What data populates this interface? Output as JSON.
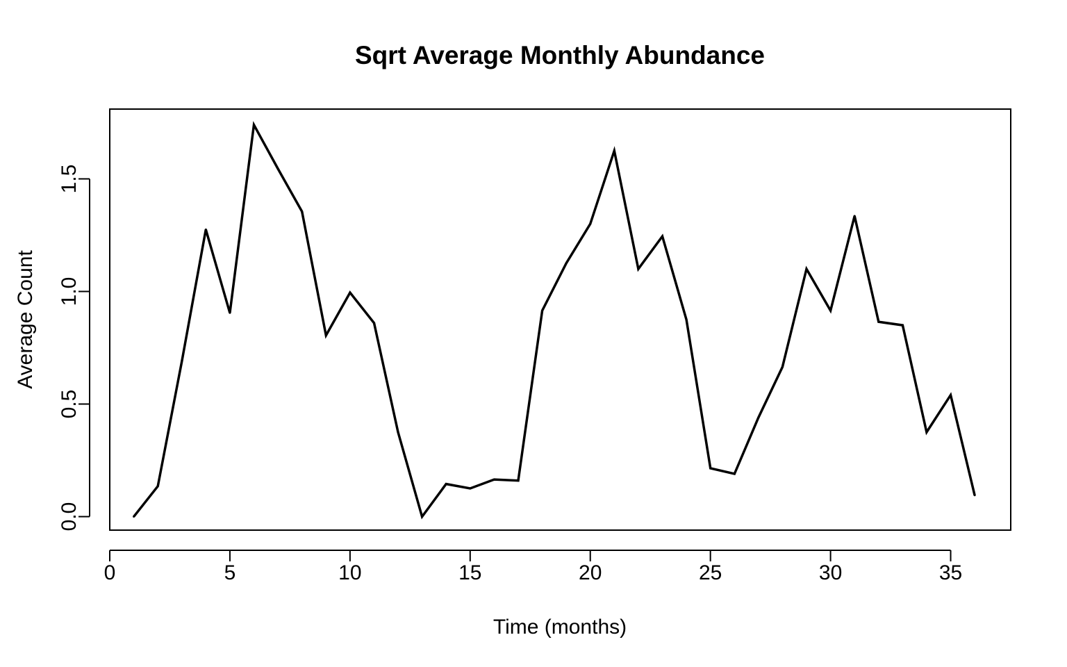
{
  "chart_data": {
    "type": "line",
    "title": "Sqrt Average Monthly Abundance",
    "xlabel": "Time (months)",
    "ylabel": "Average Count",
    "xlim": [
      0,
      37.5
    ],
    "ylim": [
      -0.06,
      1.81
    ],
    "x_ticks": [
      0,
      5,
      10,
      15,
      20,
      25,
      30,
      35
    ],
    "x_tick_labels": [
      "0",
      "5",
      "10",
      "15",
      "20",
      "25",
      "30",
      "35"
    ],
    "y_ticks": [
      0.0,
      0.5,
      1.0,
      1.5
    ],
    "y_tick_labels": [
      "0.0",
      "0.5",
      "1.0",
      "1.5"
    ],
    "grid": false,
    "line_color": "#000000",
    "series": [
      {
        "x": [
          1,
          2,
          3,
          4,
          5,
          6,
          7,
          8,
          9,
          10,
          11,
          12,
          13,
          14,
          15,
          16,
          17,
          18,
          19,
          20,
          21,
          22,
          23,
          24,
          25,
          26,
          27,
          28,
          29,
          30,
          31,
          32,
          33,
          34,
          35,
          36
        ],
        "values": [
          0.0,
          0.135,
          0.69,
          1.275,
          0.905,
          1.74,
          1.545,
          1.355,
          0.805,
          0.995,
          0.86,
          0.375,
          0.0,
          0.145,
          0.125,
          0.165,
          0.16,
          0.915,
          1.125,
          1.3,
          1.625,
          1.1,
          1.245,
          0.875,
          0.215,
          0.19,
          0.44,
          0.665,
          1.1,
          0.915,
          1.335,
          0.865,
          0.85,
          0.375,
          0.54,
          0.095
        ]
      }
    ]
  }
}
